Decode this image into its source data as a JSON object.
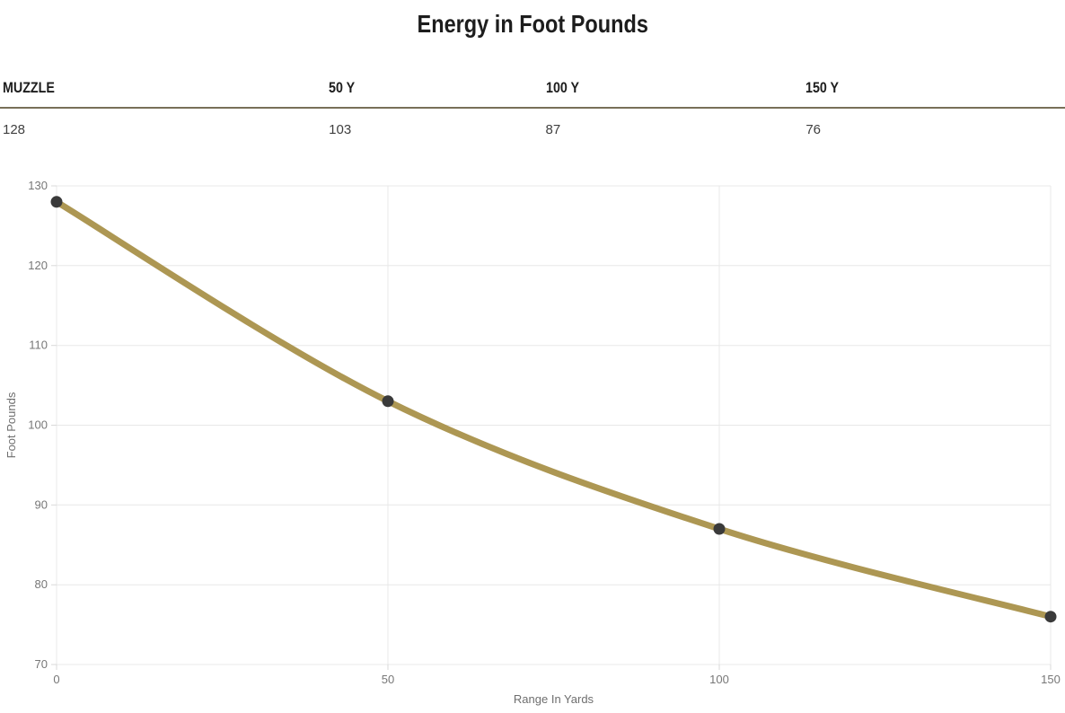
{
  "page_title": "Energy in Foot Pounds",
  "table": {
    "columns": [
      {
        "header": "MUZZLE",
        "value": "128"
      },
      {
        "header": "50 Y",
        "value": "103"
      },
      {
        "header": "100 Y",
        "value": "87"
      },
      {
        "header": "150 Y",
        "value": "76"
      }
    ]
  },
  "colors": {
    "title_text": "#1d1d1d",
    "table_rule": "#787058",
    "value_text": "#3f3f3f",
    "line": "#ad9753",
    "marker": "#3a3a3a",
    "grid": "#e8e8e8",
    "tick": "#d9d9d9",
    "tick_text": "#777777",
    "axis_title_text": "#6e6e6e"
  },
  "chart_data": {
    "type": "line",
    "title": "Energy in Foot Pounds",
    "x": [
      0,
      50,
      100,
      150
    ],
    "series": [
      {
        "name": "Energy in Foot Pounds",
        "values": [
          128,
          103,
          87,
          76
        ]
      }
    ],
    "xlabel": "Range In Yards",
    "ylabel": "Foot Pounds",
    "xlim": [
      0,
      150
    ],
    "ylim": [
      70,
      130
    ],
    "x_ticks": [
      0,
      50,
      100,
      150
    ],
    "y_ticks": [
      70,
      80,
      90,
      100,
      110,
      120,
      130
    ],
    "grid": true,
    "legend_position": "none",
    "smooth": true,
    "line_color": "#ad9753",
    "line_width": 7,
    "point_color": "#3a3a3a",
    "point_radius": 6.5
  }
}
